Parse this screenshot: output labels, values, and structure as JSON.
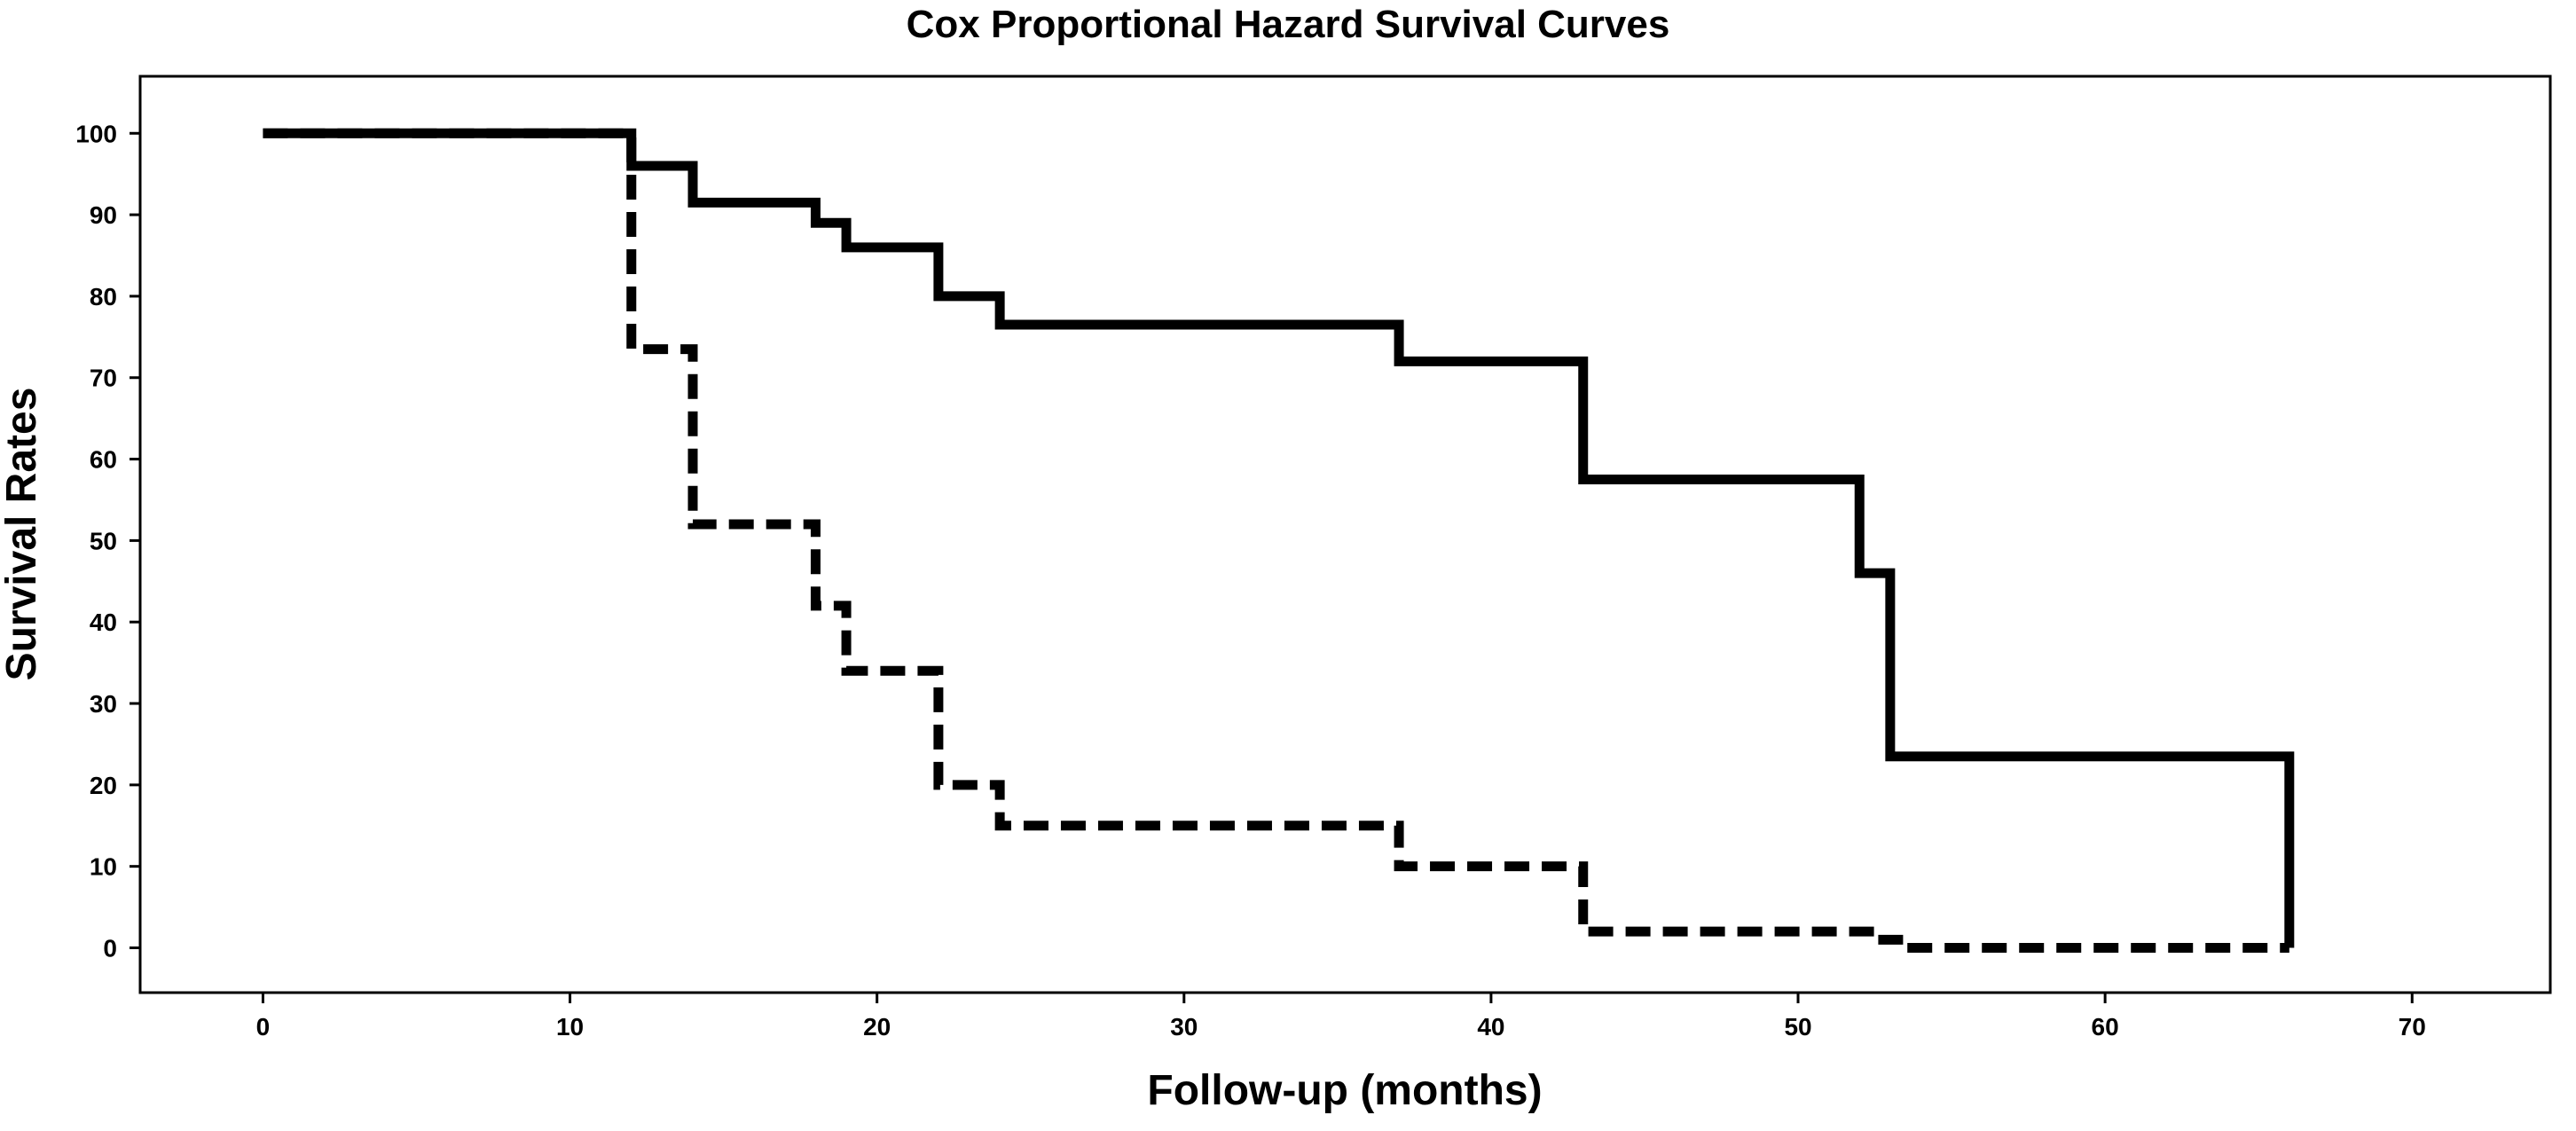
{
  "chart_data": {
    "type": "line",
    "title": "Cox Proportional Hazard Survival Curves",
    "xlabel": "Follow-up (months)",
    "ylabel": "Survival Rates",
    "xlim": [
      -4,
      74.5
    ],
    "ylim": [
      -5.5,
      107
    ],
    "xticks": [
      0,
      10,
      20,
      30,
      40,
      50,
      60,
      70
    ],
    "yticks": [
      0,
      10,
      20,
      30,
      40,
      50,
      60,
      70,
      80,
      90,
      100
    ],
    "grid": false,
    "legend": "none",
    "step": true,
    "series": [
      {
        "style": "solid",
        "color": "#000000",
        "x": [
          0,
          12,
          14,
          18,
          19,
          22,
          24,
          37,
          43,
          52,
          53,
          66,
          66
        ],
        "y": [
          100,
          96,
          91.5,
          89,
          86,
          80,
          76.5,
          72,
          57.5,
          46,
          23.5,
          23.5,
          0
        ]
      },
      {
        "style": "dashed",
        "color": "#000000",
        "x": [
          0,
          12,
          14,
          18,
          19,
          22,
          24,
          37,
          43,
          52.5,
          53.5,
          66
        ],
        "y": [
          100,
          73.5,
          52,
          42,
          34,
          20,
          15,
          10,
          2,
          1,
          0,
          0
        ]
      }
    ]
  }
}
